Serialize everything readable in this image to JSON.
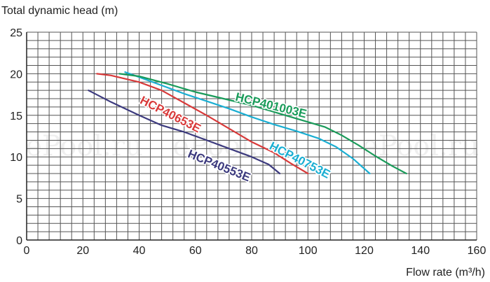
{
  "chart_data": {
    "type": "line",
    "ylabel": "Total dynamic head (m)",
    "xlabel": "Flow rate (m³/h)",
    "xlim": [
      0,
      160
    ],
    "ylim": [
      0,
      25
    ],
    "x_ticks": [
      "0",
      "20",
      "40",
      "60",
      "80",
      "100",
      "120",
      "140",
      "160"
    ],
    "y_ticks": [
      "0",
      "5",
      "10",
      "15",
      "20",
      "25"
    ],
    "grid": true,
    "series": [
      {
        "name": "HCP40553E",
        "color": "#3c3a7e",
        "x": [
          22,
          30,
          40,
          48,
          56,
          64,
          72,
          80,
          86,
          90
        ],
        "y": [
          18,
          16.6,
          15,
          13.8,
          13,
          12,
          11,
          10,
          9.1,
          8
        ]
      },
      {
        "name": "HCP40653E",
        "color": "#d83a3a",
        "x": [
          25,
          30,
          40,
          48,
          56,
          64,
          72,
          80,
          88,
          94,
          100
        ],
        "y": [
          20,
          19.8,
          19,
          18,
          16.5,
          15,
          13.4,
          11.8,
          10.5,
          9.2,
          8
        ]
      },
      {
        "name": "HCP40753E",
        "color": "#1aaed2",
        "x": [
          35,
          40,
          48,
          56,
          64,
          72,
          80,
          88,
          96,
          104,
          110,
          116,
          122
        ],
        "y": [
          20.2,
          19.6,
          18.6,
          17.6,
          16.7,
          15.8,
          14.8,
          13.9,
          13.1,
          12.2,
          11.2,
          9.8,
          8
        ]
      },
      {
        "name": "HCP401003E",
        "color": "#1a9b5a",
        "x": [
          33,
          40,
          50,
          60,
          70,
          80,
          90,
          100,
          106,
          112,
          118,
          124,
          130,
          135
        ],
        "y": [
          20,
          19.7,
          18.8,
          17.8,
          17,
          16.2,
          15.2,
          14.2,
          13.6,
          12.6,
          11.4,
          10.1,
          8.9,
          8
        ]
      }
    ],
    "legend": "inline",
    "watermark": "ePool.ru"
  }
}
